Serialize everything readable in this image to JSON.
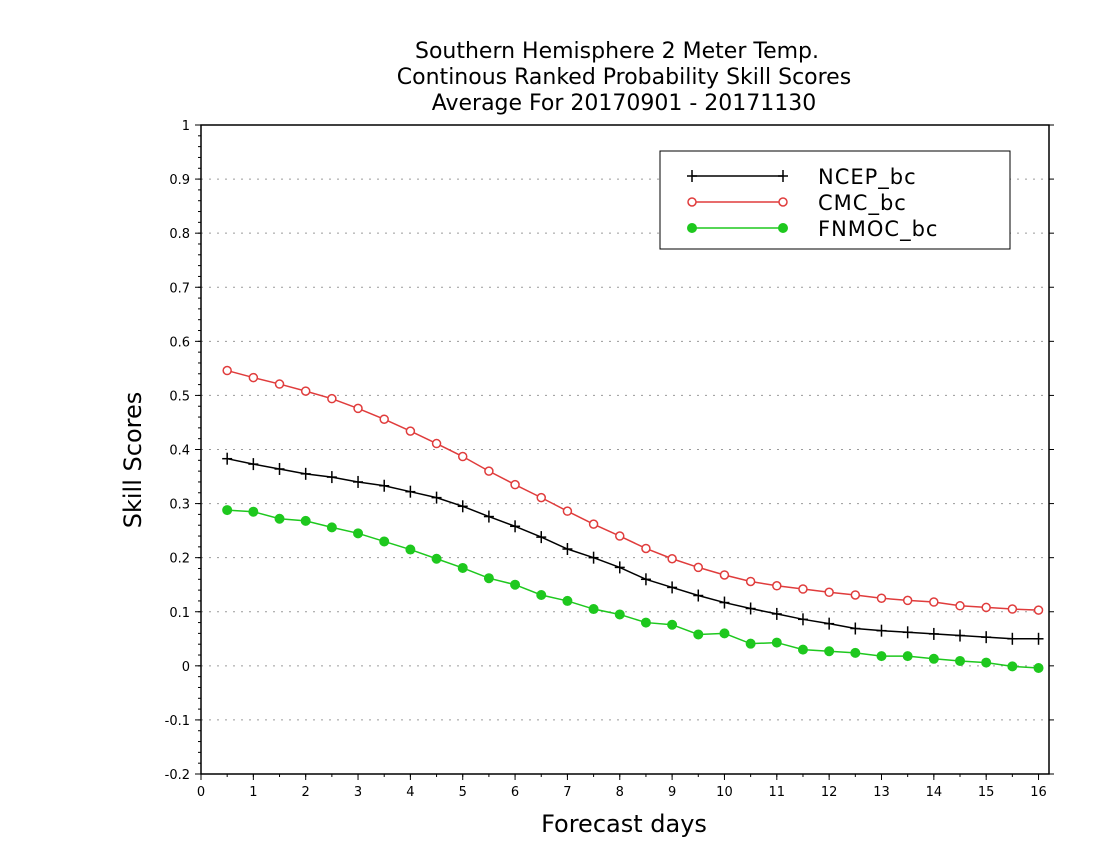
{
  "colors": {
    "NCEP_bc": "#000000",
    "CMC_bc": "#e03c3c",
    "FNMOC_bc": "#1ec81e",
    "grid": "#9a9a9a",
    "axis": "#000000",
    "background": "#ffffff"
  },
  "chart_data": {
    "type": "line",
    "title": [
      "Southern Hemisphere 2 Meter Temp.",
      "Continous Ranked Probability Skill Scores",
      "Average For 20170901 - 20171130"
    ],
    "xlabel": "Forecast days",
    "ylabel": "Skill Scores",
    "xlim": [
      0,
      16.2
    ],
    "ylim": [
      -0.2,
      1
    ],
    "x_ticks": [
      0,
      1,
      2,
      3,
      4,
      5,
      6,
      7,
      8,
      9,
      10,
      11,
      12,
      13,
      14,
      15,
      16
    ],
    "x_tick_labels": [
      "0",
      "1",
      "2",
      "3",
      "4",
      "5",
      "6",
      "7",
      "8",
      "9",
      "10",
      "11",
      "12",
      "13",
      "14",
      "15",
      "16"
    ],
    "y_ticks": [
      -0.2,
      -0.1,
      0,
      0.1,
      0.2,
      0.3,
      0.4,
      0.5,
      0.6,
      0.7,
      0.8,
      0.9,
      1
    ],
    "y_tick_labels": [
      "-0.2",
      "-0.1",
      "0",
      "0.1",
      "0.2",
      "0.3",
      "0.4",
      "0.5",
      "0.6",
      "0.7",
      "0.8",
      "0.9",
      "1"
    ],
    "grid": "horizontal dotted",
    "legend_position": "top-right",
    "x": [
      0.5,
      1,
      1.5,
      2,
      2.5,
      3,
      3.5,
      4,
      4.5,
      5,
      5.5,
      6,
      6.5,
      7,
      7.5,
      8,
      8.5,
      9,
      9.5,
      10,
      10.5,
      11,
      11.5,
      12,
      12.5,
      13,
      13.5,
      14,
      14.5,
      15,
      15.5,
      16
    ],
    "series": [
      {
        "name": "NCEP_bc",
        "marker": "plus",
        "values": [
          0.383,
          0.373,
          0.364,
          0.355,
          0.349,
          0.34,
          0.333,
          0.322,
          0.311,
          0.295,
          0.276,
          0.258,
          0.238,
          0.216,
          0.2,
          0.182,
          0.16,
          0.145,
          0.13,
          0.117,
          0.106,
          0.096,
          0.086,
          0.078,
          0.069,
          0.065,
          0.062,
          0.059,
          0.056,
          0.053,
          0.05,
          0.05
        ]
      },
      {
        "name": "CMC_bc",
        "marker": "open-circle",
        "values": [
          0.546,
          0.533,
          0.521,
          0.508,
          0.494,
          0.476,
          0.456,
          0.434,
          0.411,
          0.387,
          0.36,
          0.335,
          0.311,
          0.286,
          0.262,
          0.24,
          0.217,
          0.198,
          0.182,
          0.168,
          0.156,
          0.148,
          0.142,
          0.136,
          0.131,
          0.125,
          0.121,
          0.118,
          0.111,
          0.108,
          0.105,
          0.103
        ]
      },
      {
        "name": "FNMOC_bc",
        "marker": "filled-circle",
        "values": [
          0.288,
          0.285,
          0.272,
          0.268,
          0.256,
          0.245,
          0.23,
          0.215,
          0.198,
          0.181,
          0.162,
          0.15,
          0.131,
          0.12,
          0.105,
          0.095,
          0.08,
          0.076,
          0.058,
          0.06,
          0.041,
          0.043,
          0.03,
          0.027,
          0.024,
          0.018,
          0.018,
          0.013,
          0.009,
          0.006,
          -0.001,
          -0.004
        ]
      }
    ]
  }
}
